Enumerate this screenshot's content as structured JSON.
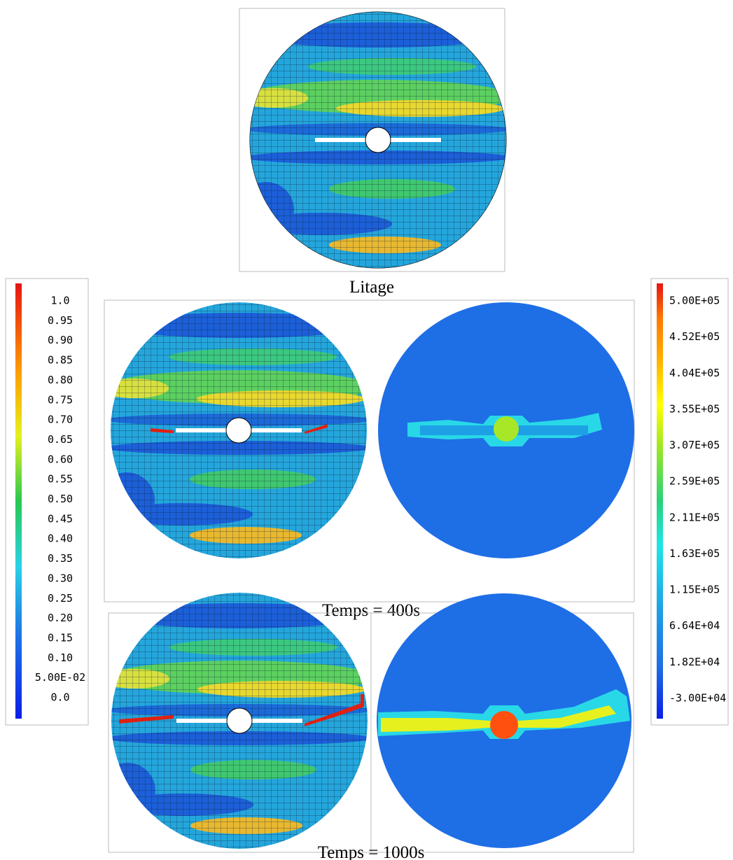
{
  "top_panel": {
    "caption": "Litage"
  },
  "middle_panel": {
    "caption": "Temps = 400s"
  },
  "bottom_panel": {
    "caption": "Temps = 1000s"
  },
  "left_colorbar": {
    "labels": [
      "1.0",
      "0.95",
      "0.90",
      "0.85",
      "0.80",
      "0.75",
      "0.70",
      "0.65",
      "0.60",
      "0.55",
      "0.50",
      "0.45",
      "0.40",
      "0.35",
      "0.30",
      "0.25",
      "0.20",
      "0.15",
      "0.10",
      "5.00E-02",
      "0.0"
    ]
  },
  "right_colorbar": {
    "labels": [
      "5.00E+05",
      "4.52E+05",
      "4.04E+05",
      "3.55E+05",
      "3.07E+05",
      "2.59E+05",
      "2.11E+05",
      "1.63E+05",
      "1.15E+05",
      "6.64E+04",
      "1.82E+04",
      "-3.00E+04"
    ]
  }
}
